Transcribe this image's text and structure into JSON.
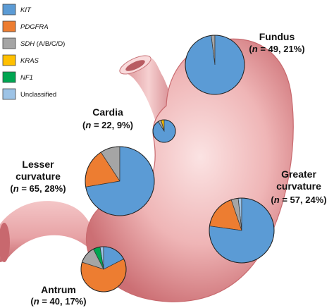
{
  "chart_data": {
    "type": "pie",
    "legend": {
      "placement": "top-left",
      "entries": [
        {
          "name": "KIT",
          "color": "#5B9BD5",
          "italic": true
        },
        {
          "name": "PDGFRA",
          "color": "#ED7D31",
          "italic": true
        },
        {
          "name": "SDH",
          "suffix": "(A/B/C/D)",
          "color": "#A5A5A5",
          "italic": true
        },
        {
          "name": "KRAS",
          "color": "#FFC000",
          "italic": true
        },
        {
          "name": "NF1",
          "color": "#00A651",
          "italic": true
        },
        {
          "name": "Unclassified",
          "color": "#9DC3E6",
          "italic": false
        }
      ]
    },
    "pies": [
      {
        "region": "Fundus",
        "n": 49,
        "pct": "21%",
        "label_line1": "Fundus",
        "label_line2": "= 49, 21%",
        "slices": {
          "KIT": 48,
          "PDGFRA": 0,
          "SDH": 1,
          "KRAS": 0,
          "NF1": 0,
          "Unclassified": 0
        }
      },
      {
        "region": "Cardia",
        "n": 22,
        "pct": "9%",
        "label_line1": "Cardia",
        "label_line2": "= 22, 9%",
        "slices": {
          "KIT": 20,
          "PDGFRA": 0,
          "SDH": 1,
          "KRAS": 1,
          "NF1": 0,
          "Unclassified": 0
        }
      },
      {
        "region": "Lesser curvature",
        "n": 65,
        "pct": "28%",
        "label_line1": "Lesser",
        "label_line2": "curvature",
        "label_line3": "= 65, 28%",
        "slices": {
          "KIT": 47,
          "PDGFRA": 12,
          "SDH": 6,
          "KRAS": 0,
          "NF1": 0,
          "Unclassified": 0
        }
      },
      {
        "region": "Greater curvature",
        "n": 57,
        "pct": "24%",
        "label_line1": "Greater",
        "label_line2": "curvature",
        "label_line3": "= 57, 24%",
        "slices": {
          "KIT": 44,
          "PDGFRA": 10,
          "SDH": 2,
          "KRAS": 0,
          "NF1": 0,
          "Unclassified": 1
        }
      },
      {
        "region": "Antrum",
        "n": 40,
        "pct": "17%",
        "label_line1": "Antrum",
        "label_line2": "= 40, 17%",
        "slices": {
          "KIT": 7,
          "PDGFRA": 25,
          "SDH": 5,
          "KRAS": 0,
          "NF1": 2,
          "Unclassified": 1
        }
      }
    ]
  },
  "colors": {
    "stomach_light": "#F7D3D3",
    "stomach_mid": "#E9A2A3",
    "stomach_dark": "#C8696E"
  }
}
